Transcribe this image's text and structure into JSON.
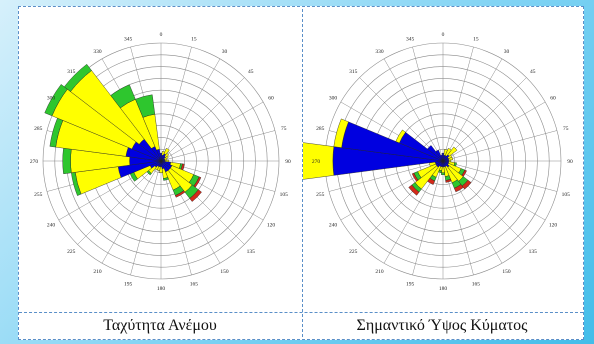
{
  "palette": {
    "blue": "#0000e0",
    "yellow": "#ffff00",
    "green": "#2ec62e",
    "red": "#d42a1a",
    "grid": "#8a8a8a"
  },
  "roses": [
    {
      "id": "wind",
      "caption": "Ταχύτητα Ανέμου",
      "direction_labels": [
        "0",
        "15",
        "30",
        "45",
        "60",
        "75",
        "90",
        "105",
        "120",
        "135",
        "150",
        "165",
        "180",
        "195",
        "210",
        "225",
        "240",
        "255",
        "270",
        "285",
        "300",
        "315",
        "330",
        "345"
      ],
      "sectors": [
        [
          4,
          0,
          0,
          0
        ],
        [
          3,
          2,
          0,
          0
        ],
        [
          4,
          3,
          0,
          0
        ],
        [
          3,
          2,
          0,
          0
        ],
        [
          2,
          2,
          0,
          0
        ],
        [
          2,
          1,
          0,
          0
        ],
        [
          2,
          2,
          0,
          0
        ],
        [
          5,
          5,
          1,
          1
        ],
        [
          6,
          12,
          3,
          1
        ],
        [
          6,
          14,
          4,
          2
        ],
        [
          6,
          10,
          3,
          1
        ],
        [
          4,
          5,
          1,
          0
        ],
        [
          3,
          3,
          0,
          0
        ],
        [
          3,
          2,
          0,
          0
        ],
        [
          3,
          2,
          0,
          0
        ],
        [
          4,
          4,
          1,
          0
        ],
        [
          6,
          9,
          2,
          0
        ],
        [
          22,
          22,
          2,
          0
        ],
        [
          16,
          30,
          4,
          0
        ],
        [
          18,
          36,
          3,
          0
        ],
        [
          16,
          44,
          4,
          0
        ],
        [
          14,
          44,
          4,
          0
        ],
        [
          8,
          26,
          8,
          0
        ],
        [
          6,
          18,
          10,
          0
        ]
      ]
    },
    {
      "id": "wave",
      "caption": "Σημαντικό Ύψος Κύματος",
      "direction_labels": [
        "0",
        "15",
        "30",
        "45",
        "60",
        "75",
        "90",
        "105",
        "120",
        "135",
        "150",
        "165",
        "180",
        "195",
        "210",
        "225",
        "240",
        "255",
        "270",
        "285",
        "300",
        "315",
        "330",
        "345"
      ],
      "sectors": [
        [
          4,
          0,
          0,
          0
        ],
        [
          3,
          3,
          0,
          0
        ],
        [
          3,
          4,
          0,
          0
        ],
        [
          4,
          5,
          0,
          0
        ],
        [
          3,
          2,
          0,
          0
        ],
        [
          3,
          2,
          0,
          0
        ],
        [
          3,
          1,
          0,
          0
        ],
        [
          3,
          3,
          1,
          0
        ],
        [
          3,
          7,
          2,
          1
        ],
        [
          4,
          9,
          3,
          2
        ],
        [
          3,
          9,
          3,
          2
        ],
        [
          3,
          5,
          2,
          1
        ],
        [
          3,
          3,
          1,
          0
        ],
        [
          3,
          2,
          1,
          0
        ],
        [
          3,
          6,
          2,
          2
        ],
        [
          4,
          14,
          2,
          2
        ],
        [
          4,
          10,
          2,
          1
        ],
        [
          4,
          3,
          0,
          0
        ],
        [
          56,
          38,
          0,
          0
        ],
        [
          52,
          4,
          0,
          0
        ],
        [
          24,
          2,
          0,
          0
        ],
        [
          10,
          0,
          0,
          0
        ],
        [
          6,
          0,
          0,
          0
        ],
        [
          3,
          0,
          0,
          0
        ]
      ]
    }
  ]
}
